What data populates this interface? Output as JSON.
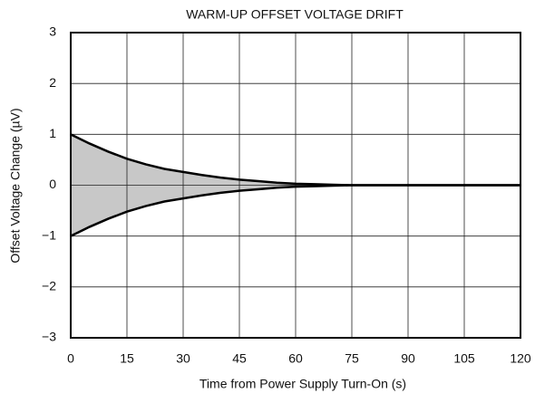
{
  "chart_data": {
    "type": "line",
    "title": "WARM-UP OFFSET VOLTAGE DRIFT",
    "x_label": "Time from Power Supply Turn-On (s)",
    "y_label": "Offset Voltage Change (µV)",
    "x": [
      0,
      5,
      10,
      15,
      20,
      25,
      30,
      35,
      40,
      45,
      50,
      55,
      60,
      65,
      70,
      75,
      80,
      85,
      90,
      95,
      100,
      105,
      110,
      115,
      120
    ],
    "series": [
      {
        "color": "#000000",
        "values": [
          1,
          0.82,
          0.66,
          0.52,
          0.41,
          0.32,
          0.26,
          0.2,
          0.15,
          0.11,
          0.08,
          0.05,
          0.03,
          0.02,
          0.01,
          0,
          0,
          0,
          0,
          0,
          0,
          0,
          0,
          0,
          0
        ]
      },
      {
        "color": "#000000",
        "values": [
          -1,
          -0.82,
          -0.66,
          -0.52,
          -0.41,
          -0.32,
          -0.26,
          -0.2,
          -0.15,
          -0.11,
          -0.08,
          -0.05,
          -0.03,
          -0.02,
          -0.01,
          0,
          0,
          0,
          0,
          0,
          0,
          0,
          0,
          0,
          0
        ]
      }
    ],
    "fill_between": "#c8c8c8",
    "xlim": [
      0,
      120
    ],
    "xticks": [
      0,
      15,
      30,
      45,
      60,
      75,
      90,
      105,
      120
    ],
    "ylim": [
      -3,
      3
    ],
    "yticks": [
      {
        "value": -3,
        "label": "−3"
      },
      {
        "value": -2,
        "label": "−2"
      },
      {
        "value": -1,
        "label": "−1"
      },
      0,
      1,
      2,
      3
    ],
    "grid": true
  }
}
